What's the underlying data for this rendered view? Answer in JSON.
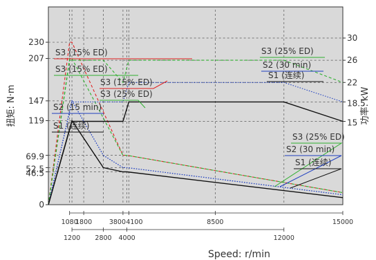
{
  "chart_data": {
    "type": "line",
    "xlabel": "Speed: r/min",
    "ylabel_left": "扭矩: N·m",
    "ylabel_right": "功率: kW",
    "x_range": [
      0,
      15000
    ],
    "y_range_torque": [
      0,
      280
    ],
    "y_range_power": [
      0,
      35.6
    ],
    "grid": "dashed reference lines",
    "x_ticks_upper": [
      "1080",
      "1800",
      "3800",
      "4100",
      "8500",
      "15000"
    ],
    "x_ticks_lower": [
      "1200",
      "2800",
      "4000",
      "12000"
    ],
    "y_ticks_left": [
      "230",
      "207",
      "147",
      "119",
      "69.9",
      "52.5",
      "46.5",
      "0"
    ],
    "y_ticks_right": [
      "30",
      "26",
      "22",
      "18.5",
      "15"
    ],
    "torque_series": [
      {
        "name": "S3 (15% ED)",
        "color": "#e02020",
        "style": "dashed",
        "points": [
          [
            0,
            0
          ],
          [
            1080,
            230
          ],
          [
            1200,
            230
          ],
          [
            3800,
            69.9
          ],
          [
            4000,
            69.9
          ],
          [
            15000,
            17
          ]
        ]
      },
      {
        "name": "S3 (15% ED)",
        "color": "#30b030",
        "style": "dashed",
        "points": [
          [
            0,
            0
          ],
          [
            1080,
            207
          ],
          [
            1200,
            207
          ],
          [
            3800,
            69.9
          ],
          [
            4000,
            69.9
          ],
          [
            15000,
            17
          ]
        ]
      },
      {
        "name": "S3 (25% ED)",
        "color": "#2040c0",
        "style": "dotted",
        "points": [
          [
            0,
            0
          ],
          [
            1200,
            147
          ],
          [
            2800,
            69.9
          ],
          [
            3800,
            52.5
          ],
          [
            4000,
            52.5
          ],
          [
            15000,
            14
          ]
        ]
      },
      {
        "name": "S2 (15 min)",
        "color": "#2040c0",
        "style": "dotted",
        "points": [
          [
            0,
            0
          ],
          [
            1200,
            147
          ],
          [
            2800,
            69.9
          ],
          [
            3800,
            52.5
          ],
          [
            4000,
            52.5
          ],
          [
            15000,
            14
          ]
        ]
      },
      {
        "name": "S1 (连续)",
        "color": "#111111",
        "style": "solid",
        "points": [
          [
            0,
            0
          ],
          [
            1200,
            119
          ],
          [
            2800,
            52.5
          ],
          [
            3800,
            46.5
          ],
          [
            4000,
            46.5
          ],
          [
            15000,
            10
          ]
        ]
      }
    ],
    "power_series": [
      {
        "name": "S3 (25% ED)",
        "color": "#30b030",
        "style": "dashed",
        "points": [
          [
            0,
            0
          ],
          [
            1080,
            26
          ],
          [
            2800,
            26
          ],
          [
            3800,
            22
          ],
          [
            4100,
            26
          ],
          [
            12000,
            26
          ],
          [
            15000,
            22
          ]
        ]
      },
      {
        "name": "S2 (30 min)",
        "color": "#2040c0",
        "style": "dotted",
        "points": [
          [
            0,
            0
          ],
          [
            1200,
            18.5
          ],
          [
            2800,
            18.5
          ],
          [
            3800,
            18.5
          ],
          [
            4100,
            22
          ],
          [
            12000,
            22
          ],
          [
            15000,
            18.5
          ]
        ]
      },
      {
        "name": "S1 (连续)",
        "color": "#111111",
        "style": "solid",
        "points": [
          [
            0,
            0
          ],
          [
            1200,
            15
          ],
          [
            2800,
            15
          ],
          [
            3800,
            15
          ],
          [
            4100,
            18.5
          ],
          [
            12000,
            18.5
          ],
          [
            15000,
            15
          ]
        ]
      }
    ],
    "annotations": [
      {
        "text": "S3 (15% ED)"
      },
      {
        "text": "S3 (15% ED)"
      },
      {
        "text": "S3 (15% ED)"
      },
      {
        "text": "S3 (25% ED)"
      },
      {
        "text": "S2 (15 min)"
      },
      {
        "text": "S1 (连续)"
      },
      {
        "text": "S3 (25% ED)"
      },
      {
        "text": "S2 (30 min)"
      },
      {
        "text": "S1 (连续)"
      },
      {
        "text": "S3 (25% ED)"
      },
      {
        "text": "S2 (30 min)"
      },
      {
        "text": "S1 (连续)"
      }
    ]
  }
}
